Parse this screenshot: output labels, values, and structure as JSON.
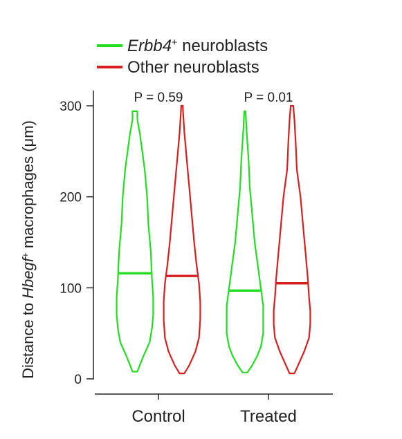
{
  "chart_data": {
    "type": "violin",
    "ylabel_parts": [
      {
        "text": "Distance to ",
        "italic": false,
        "sup": false
      },
      {
        "text": "Hbegf",
        "italic": true,
        "sup": false
      },
      {
        "text": "+",
        "italic": false,
        "sup": true
      },
      {
        "text": " macrophages (μm)",
        "italic": false,
        "sup": false
      }
    ],
    "ylim": [
      -8,
      310
    ],
    "yticks": [
      0,
      100,
      200,
      300
    ],
    "categories": [
      "Control",
      "Treated"
    ],
    "series": [
      {
        "legend_parts": [
          {
            "text": "Erbb4",
            "italic": true,
            "sup": false
          },
          {
            "text": "+",
            "italic": false,
            "sup": true
          },
          {
            "text": " neuroblasts",
            "italic": false,
            "sup": false
          }
        ],
        "color": "#22dd22",
        "groups": [
          {
            "category": "Control",
            "median": 116,
            "profile": [
              [
                8,
                2
              ],
              [
                15,
                4
              ],
              [
                25,
                7
              ],
              [
                40,
                12
              ],
              [
                55,
                14
              ],
              [
                70,
                15
              ],
              [
                90,
                15
              ],
              [
                110,
                14
              ],
              [
                140,
                13
              ],
              [
                170,
                11
              ],
              [
                200,
                10
              ],
              [
                230,
                8
              ],
              [
                250,
                6
              ],
              [
                270,
                4
              ],
              [
                285,
                2
              ],
              [
                294,
                2
              ]
            ]
          },
          {
            "category": "Treated",
            "median": 97,
            "profile": [
              [
                7,
                2
              ],
              [
                15,
                6
              ],
              [
                25,
                10
              ],
              [
                35,
                13
              ],
              [
                50,
                15
              ],
              [
                65,
                15
              ],
              [
                80,
                15
              ],
              [
                100,
                13
              ],
              [
                120,
                11
              ],
              [
                150,
                8
              ],
              [
                180,
                6
              ],
              [
                210,
                4
              ],
              [
                240,
                3
              ],
              [
                270,
                1.5
              ],
              [
                294,
                0.5
              ]
            ]
          }
        ]
      },
      {
        "legend_parts": [
          {
            "text": "Other neuroblasts",
            "italic": false,
            "sup": false
          }
        ],
        "color": "#d71f1f",
        "groups": [
          {
            "category": "Control",
            "median": 113,
            "profile": [
              [
                6,
                2
              ],
              [
                15,
                6
              ],
              [
                30,
                11
              ],
              [
                45,
                14
              ],
              [
                65,
                15
              ],
              [
                85,
                15
              ],
              [
                105,
                14
              ],
              [
                125,
                12
              ],
              [
                150,
                10
              ],
              [
                180,
                8
              ],
              [
                210,
                6
              ],
              [
                240,
                4
              ],
              [
                270,
                2
              ],
              [
                290,
                1
              ],
              [
                300,
                0.6
              ]
            ]
          },
          {
            "category": "Treated",
            "median": 105,
            "profile": [
              [
                6,
                2
              ],
              [
                15,
                5
              ],
              [
                30,
                10
              ],
              [
                45,
                14
              ],
              [
                60,
                15
              ],
              [
                75,
                15
              ],
              [
                90,
                14
              ],
              [
                110,
                13
              ],
              [
                140,
                11
              ],
              [
                170,
                9
              ],
              [
                200,
                7
              ],
              [
                230,
                4
              ],
              [
                260,
                3
              ],
              [
                285,
                2
              ],
              [
                300,
                1
              ]
            ]
          }
        ]
      }
    ],
    "annotations": [
      "P = 0.59",
      "P = 0.01"
    ],
    "grid": false,
    "legend_position": "top-left"
  }
}
